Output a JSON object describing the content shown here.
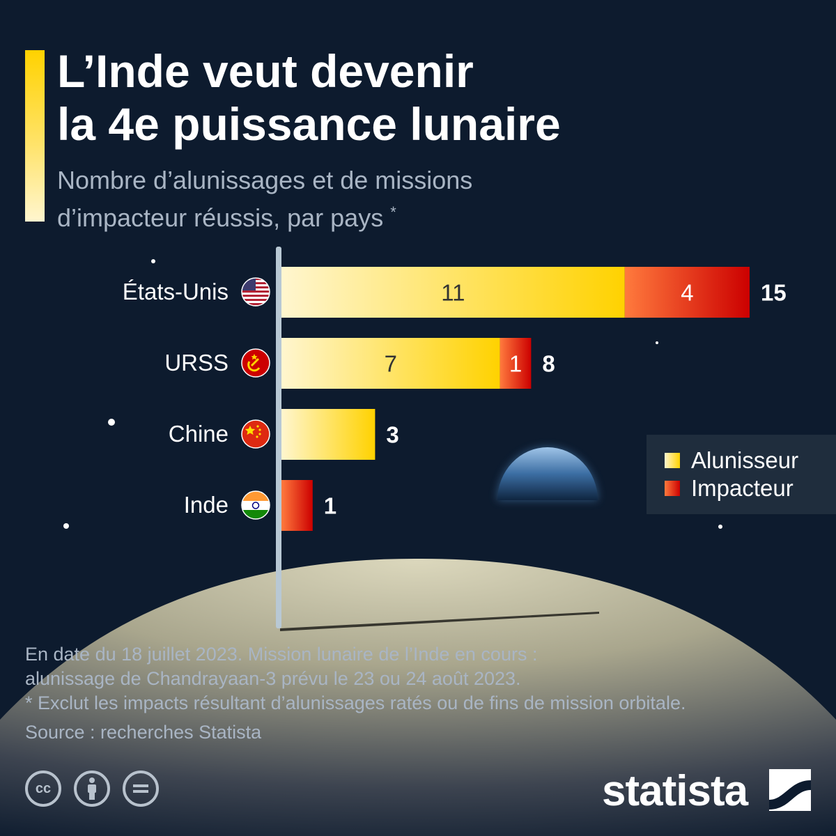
{
  "header": {
    "title_line1": "L’Inde veut devenir",
    "title_line2": "la 4e puissance lunaire",
    "subtitle_line1": "Nombre d’alunissages et de missions",
    "subtitle_line2": "d’impacteur réussis, par pays",
    "subtitle_mark": "*"
  },
  "chart_data": {
    "type": "bar",
    "orientation": "horizontal",
    "stacked": true,
    "categories": [
      "États-Unis",
      "URSS",
      "Chine",
      "Inde"
    ],
    "series": [
      {
        "name": "Alunisseur",
        "values": [
          11,
          7,
          3,
          0
        ]
      },
      {
        "name": "Impacteur",
        "values": [
          4,
          1,
          0,
          1
        ]
      }
    ],
    "totals": [
      15,
      8,
      3,
      1
    ],
    "segment_labels": [
      [
        "11",
        "4"
      ],
      [
        "7",
        "1"
      ],
      [
        "",
        ""
      ],
      [
        "",
        ""
      ]
    ],
    "total_labels": [
      "15",
      "8",
      "3",
      "1"
    ],
    "xlim": [
      0,
      15
    ],
    "grid": false,
    "legend_position": "right"
  },
  "legend": {
    "items": [
      {
        "label": "Alunisseur"
      },
      {
        "label": "Impacteur"
      }
    ]
  },
  "flags": [
    "us-flag-icon",
    "ussr-flag-icon",
    "china-flag-icon",
    "india-flag-icon"
  ],
  "colors": {
    "background": "#0d1b2e",
    "alunisseur_start": "#fff6cf",
    "alunisseur_end": "#ffd200",
    "impacteur_start": "#ff7a3d",
    "impacteur_end": "#cc0000",
    "title_bar": "#ffd200"
  },
  "footer": {
    "note_line1": "En date du 18 juillet 2023. Mission lunaire de l’Inde en cours :",
    "note_line2": "alunissage de Chandrayaan-3 prévu le 23 ou 24 août 2023.",
    "note_line3": "* Exclut les impacts résultant d’alunissages ratés ou de fins de mission orbitale.",
    "source": "Source : recherches Statista",
    "brand": "statista"
  }
}
